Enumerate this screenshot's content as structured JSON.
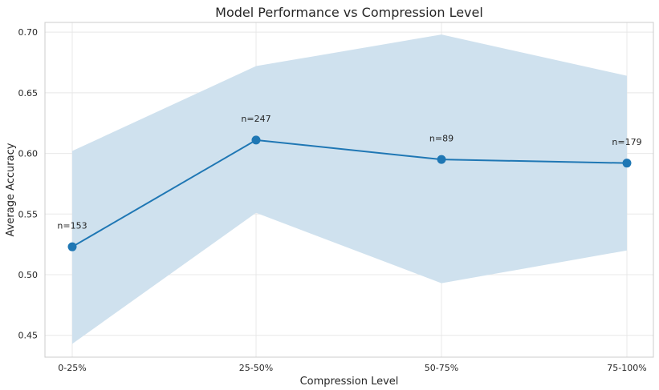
{
  "chart_data": {
    "type": "line",
    "title": "Model Performance vs Compression Level",
    "xlabel": "Compression Level",
    "ylabel": "Average Accuracy",
    "categories": [
      "0-25%",
      "25-50%",
      "50-75%",
      "75-100%"
    ],
    "series": [
      {
        "values": [
          0.523,
          0.611,
          0.595,
          0.592
        ],
        "lower": [
          0.443,
          0.551,
          0.493,
          0.52
        ],
        "upper": [
          0.602,
          0.672,
          0.698,
          0.664
        ],
        "color": "#1f77b4",
        "band_color": "#cfe1ee"
      }
    ],
    "annotations": [
      "n=153",
      "n=247",
      "n=89",
      "n=179"
    ],
    "yticks": [
      "0.45",
      "0.50",
      "0.55",
      "0.60",
      "0.65",
      "0.70"
    ],
    "ylim": [
      0.432,
      0.708
    ],
    "grid": true
  }
}
